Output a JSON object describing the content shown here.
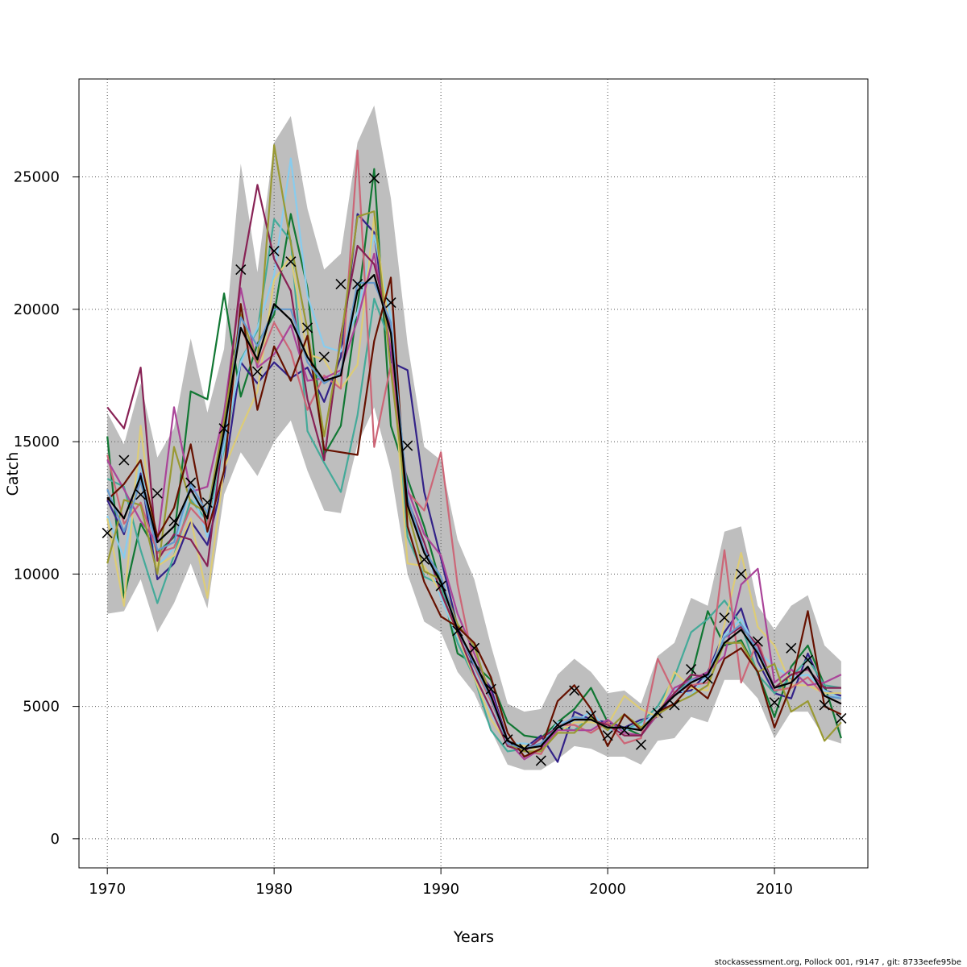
{
  "chart_data": {
    "type": "line",
    "title": "",
    "xlabel": "Years",
    "ylabel": "Catch",
    "xlim": [
      1968.3,
      2015.6
    ],
    "ylim": [
      -1100,
      28700
    ],
    "xticks": [
      1970,
      1980,
      1990,
      2000,
      2010
    ],
    "yticks": [
      0,
      5000,
      10000,
      15000,
      20000,
      25000
    ],
    "grid": true,
    "x": [
      1970,
      1971,
      1972,
      1973,
      1974,
      1975,
      1976,
      1977,
      1978,
      1979,
      1980,
      1981,
      1982,
      1983,
      1984,
      1985,
      1986,
      1987,
      1988,
      1989,
      1990,
      1991,
      1992,
      1993,
      1994,
      1995,
      1996,
      1997,
      1998,
      1999,
      2000,
      2001,
      2002,
      2003,
      2004,
      2005,
      2006,
      2007,
      2008,
      2009,
      2010,
      2011,
      2012,
      2013,
      2014
    ],
    "observed": {
      "marker": "x",
      "color": "#000000",
      "values": [
        11550,
        14300,
        13000,
        13050,
        12000,
        13450,
        12700,
        15500,
        21500,
        17650,
        22200,
        21800,
        19300,
        18200,
        20950,
        20950,
        24950,
        20250,
        14850,
        10550,
        9550,
        7850,
        7200,
        5650,
        3750,
        3400,
        2950,
        4300,
        5600,
        4650,
        3900,
        4100,
        3550,
        4750,
        5050,
        6400,
        6050,
        8350,
        10000,
        7450,
        5150,
        7200,
        6750,
        5050,
        4550
      ]
    },
    "band": {
      "color": "#bebebe",
      "lower": [
        8500,
        8600,
        9800,
        7800,
        8900,
        10400,
        8700,
        13000,
        14600,
        13700,
        15000,
        15800,
        13900,
        12400,
        12300,
        14900,
        16300,
        13900,
        10000,
        8200,
        7800,
        6300,
        5500,
        4100,
        2800,
        2600,
        2600,
        3000,
        3500,
        3400,
        3100,
        3100,
        2800,
        3700,
        3800,
        4600,
        4400,
        6000,
        6000,
        5300,
        3800,
        4800,
        4800,
        3800,
        3600
      ],
      "upper": [
        16100,
        14900,
        17200,
        14400,
        15500,
        18900,
        16100,
        18500,
        25500,
        21400,
        26300,
        27300,
        23800,
        21500,
        22100,
        26300,
        27700,
        24200,
        18700,
        14800,
        14300,
        11300,
        9800,
        7300,
        5100,
        4800,
        4900,
        6200,
        6800,
        6300,
        5500,
        5600,
        5100,
        6900,
        7400,
        9100,
        8800,
        11600,
        11800,
        8800,
        7900,
        8800,
        9200,
        7300,
        6700
      ]
    },
    "series": [
      {
        "color": "#117733",
        "values": [
          15200,
          9100,
          11900,
          10800,
          11400,
          16900,
          16600,
          20600,
          16700,
          18700,
          19800,
          23600,
          20800,
          14500,
          15600,
          20100,
          25300,
          15600,
          13600,
          11800,
          9600,
          7000,
          6600,
          6000,
          4400,
          3900,
          3800,
          4400,
          4900,
          5700,
          4400,
          4200,
          3900,
          4700,
          5500,
          6100,
          8600,
          7300,
          7500,
          6300,
          4600,
          6500,
          7300,
          5800,
          3800
        ]
      },
      {
        "color": "#332288",
        "values": [
          12800,
          11500,
          13800,
          9800,
          10400,
          12000,
          11100,
          13700,
          18000,
          17200,
          18000,
          17400,
          17800,
          16500,
          18200,
          23600,
          22900,
          18000,
          17700,
          13100,
          10600,
          8000,
          6500,
          5700,
          3700,
          3400,
          3900,
          2900,
          4800,
          4500,
          4400,
          4200,
          4500,
          4600,
          5500,
          5600,
          6300,
          7800,
          8700,
          6700,
          5500,
          5300,
          7000,
          5600,
          5400
        ]
      },
      {
        "color": "#44AA99",
        "values": [
          13600,
          13300,
          10900,
          8900,
          10700,
          12800,
          12000,
          14700,
          18100,
          19200,
          23400,
          22600,
          15400,
          14200,
          13100,
          16000,
          20400,
          18700,
          11400,
          9900,
          9600,
          7400,
          6100,
          4100,
          3300,
          3400,
          3600,
          4200,
          4100,
          4600,
          4200,
          4100,
          4400,
          5000,
          6100,
          7800,
          8300,
          9000,
          8100,
          6200,
          5500,
          6100,
          6800,
          5800,
          5700
        ]
      },
      {
        "color": "#88CCEE",
        "values": [
          12200,
          10600,
          14200,
          10300,
          11000,
          13300,
          11400,
          14900,
          18000,
          19300,
          21300,
          25700,
          20500,
          18600,
          18400,
          19900,
          22800,
          19700,
          12500,
          11200,
          9100,
          7600,
          6300,
          4800,
          3600,
          3600,
          3500,
          4400,
          4400,
          4800,
          4100,
          4100,
          4300,
          4800,
          5700,
          5400,
          6200,
          7700,
          8300,
          7100,
          6500,
          6100,
          6200,
          5600,
          5300
        ]
      },
      {
        "color": "#DDCC77",
        "values": [
          12100,
          8800,
          15600,
          10300,
          10700,
          12100,
          9100,
          14000,
          15500,
          16900,
          21100,
          22000,
          18300,
          18100,
          17000,
          17900,
          23500,
          18800,
          10400,
          10300,
          9300,
          7700,
          6100,
          4500,
          3600,
          3500,
          3300,
          4000,
          4400,
          4400,
          4300,
          5400,
          4900,
          4600,
          6300,
          5700,
          5600,
          8100,
          10800,
          8000,
          7300,
          5800,
          5800,
          5500,
          5500
        ]
      },
      {
        "color": "#CC6677",
        "values": [
          14500,
          11900,
          12700,
          10800,
          11000,
          12500,
          11800,
          16100,
          19300,
          17900,
          19500,
          18400,
          16200,
          17500,
          17000,
          26000,
          14800,
          17900,
          13100,
          12400,
          14600,
          9600,
          6500,
          5200,
          3700,
          3300,
          3200,
          4300,
          4300,
          4000,
          4400,
          3600,
          3800,
          6800,
          5500,
          5800,
          5900,
          10900,
          5900,
          7500,
          5600,
          5700,
          6100,
          5400,
          5100
        ]
      },
      {
        "color": "#AA4499",
        "values": [
          14300,
          13200,
          12000,
          11200,
          16300,
          13100,
          13300,
          16100,
          20800,
          17800,
          18300,
          19400,
          17300,
          17400,
          17700,
          19600,
          22100,
          18500,
          13200,
          11500,
          10700,
          8500,
          7000,
          5500,
          3700,
          3000,
          3400,
          4100,
          4100,
          4100,
          4500,
          4000,
          3900,
          4700,
          5700,
          6000,
          6300,
          6900,
          9600,
          10200,
          5900,
          6400,
          5800,
          5900,
          6200
        ]
      },
      {
        "color": "#882255",
        "values": [
          16300,
          15500,
          17800,
          10500,
          11500,
          11300,
          10300,
          15500,
          21200,
          24700,
          21900,
          20700,
          16600,
          14300,
          19000,
          22400,
          21700,
          19200,
          12800,
          11200,
          9300,
          7800,
          6200,
          4900,
          3500,
          3300,
          3800,
          4200,
          4500,
          4500,
          4300,
          3900,
          3900,
          4800,
          5500,
          6200,
          6100,
          7600,
          8000,
          7300,
          5700,
          6200,
          6400,
          5700,
          5700
        ]
      },
      {
        "color": "#999933",
        "values": [
          10400,
          12800,
          12600,
          10000,
          14800,
          12700,
          12300,
          15800,
          19800,
          18000,
          26200,
          22500,
          19200,
          15200,
          18800,
          23500,
          23700,
          17700,
          12400,
          10100,
          9800,
          8100,
          7300,
          5300,
          3600,
          3300,
          3300,
          4000,
          4000,
          4600,
          4100,
          4700,
          4200,
          4700,
          5100,
          5400,
          5800,
          7400,
          7400,
          6300,
          6600,
          4800,
          5200,
          3700,
          4400
        ]
      },
      {
        "color": "#661100",
        "values": [
          12800,
          13400,
          14300,
          11400,
          12500,
          14900,
          11600,
          13900,
          20200,
          16200,
          18600,
          17300,
          19000,
          14700,
          14600,
          14500,
          18800,
          21200,
          11800,
          9700,
          8400,
          8000,
          7400,
          6100,
          4000,
          3100,
          3400,
          5200,
          5800,
          4900,
          3500,
          4700,
          4100,
          4800,
          5100,
          5800,
          5300,
          6800,
          7200,
          6300,
          4200,
          5800,
          8600,
          5000,
          4700
        ]
      },
      {
        "color": "#6699CC",
        "values": [
          13200,
          11600,
          13500,
          10900,
          11200,
          13400,
          12300,
          15100,
          19700,
          18600,
          20000,
          20000,
          18000,
          17200,
          17600,
          21000,
          21000,
          19500,
          12900,
          10900,
          9900,
          7900,
          6600,
          5300,
          3600,
          3400,
          3600,
          4200,
          4600,
          4500,
          4200,
          4200,
          4100,
          4800,
          5400,
          6000,
          6100,
          7600,
          8100,
          7100,
          5700,
          5900,
          6500,
          5400,
          5300
        ]
      },
      {
        "color": "#000000",
        "values": [
          12900,
          12100,
          13700,
          11200,
          11800,
          13200,
          12100,
          15400,
          19300,
          18100,
          20200,
          19600,
          18200,
          17300,
          17500,
          20700,
          21300,
          19100,
          12600,
          10800,
          9700,
          7900,
          6700,
          5400,
          3700,
          3400,
          3500,
          4200,
          4500,
          4500,
          4200,
          4200,
          4100,
          4800,
          5400,
          5900,
          6200,
          7400,
          7900,
          7000,
          5700,
          5900,
          6500,
          5400,
          5100
        ]
      }
    ]
  },
  "footer": "stockassessment.org, Pollock  001, r9147 , git: 8733eefe95be"
}
